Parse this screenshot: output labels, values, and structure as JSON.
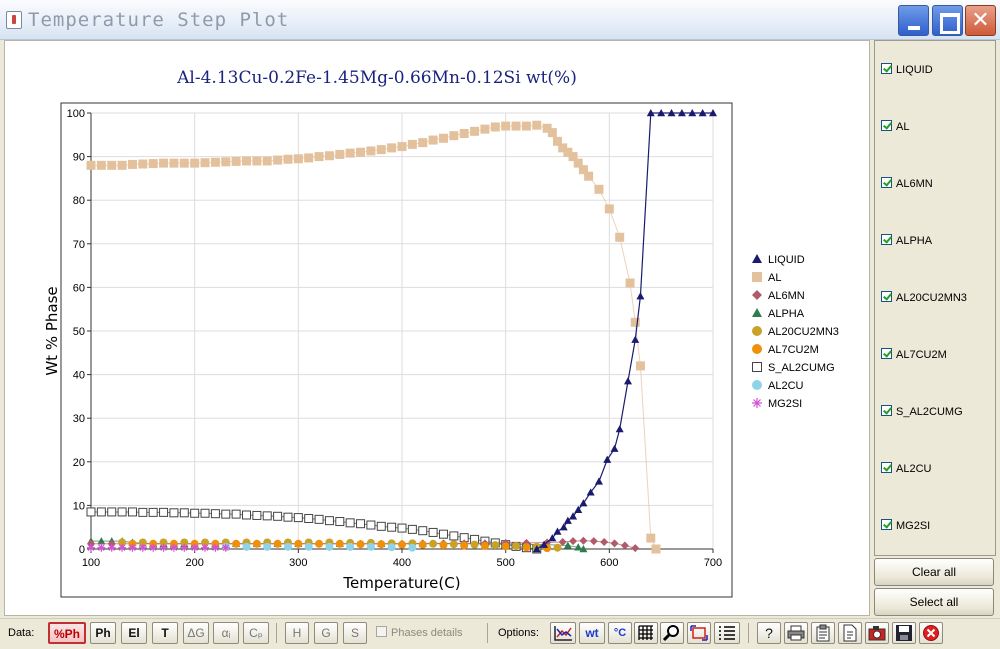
{
  "window": {
    "title": "Temperature Step Plot"
  },
  "chart_data": {
    "type": "scatter",
    "title": "Al-4.13Cu-0.2Fe-1.45Mg-0.66Mn-0.12Si wt(%)",
    "xlabel": "Temperature(C)",
    "ylabel": "Wt % Phase",
    "xlim": [
      100,
      700
    ],
    "ylim": [
      0,
      100
    ],
    "xticks": [
      "100",
      "200",
      "300",
      "400",
      "500",
      "600",
      "700"
    ],
    "yticks": [
      "0",
      "10",
      "20",
      "30",
      "40",
      "50",
      "60",
      "70",
      "80",
      "90",
      "100"
    ],
    "grid": true,
    "legend_position": "right",
    "series": [
      {
        "name": "LIQUID",
        "color": "#1a1a6e",
        "marker": "triangle",
        "line": true,
        "x": [
          530,
          537,
          545,
          550,
          556,
          560,
          565,
          570,
          575,
          582,
          590,
          598,
          605,
          610,
          618,
          625,
          630,
          640,
          650,
          660,
          670,
          680,
          690,
          700
        ],
        "y": [
          0,
          1,
          2.5,
          4,
          5,
          6.5,
          7.5,
          9,
          10.5,
          13,
          15.5,
          20.5,
          23,
          27.5,
          38.5,
          48,
          58,
          100,
          100,
          100,
          100,
          100,
          100,
          100
        ]
      },
      {
        "name": "AL",
        "color": "#e3c19c",
        "marker": "square",
        "line": true,
        "x": [
          100,
          110,
          120,
          130,
          140,
          150,
          160,
          170,
          180,
          190,
          200,
          210,
          220,
          230,
          240,
          250,
          260,
          270,
          280,
          290,
          300,
          310,
          320,
          330,
          340,
          350,
          360,
          370,
          380,
          390,
          400,
          410,
          420,
          430,
          440,
          450,
          460,
          470,
          480,
          490,
          500,
          510,
          520,
          530,
          540,
          545,
          550,
          555,
          560,
          565,
          570,
          575,
          580,
          590,
          600,
          610,
          620,
          625,
          630,
          640,
          645
        ],
        "y": [
          88,
          88,
          88,
          88,
          88.2,
          88.3,
          88.4,
          88.5,
          88.5,
          88.5,
          88.5,
          88.6,
          88.7,
          88.8,
          88.9,
          89,
          89,
          89,
          89.2,
          89.4,
          89.5,
          89.7,
          90,
          90.2,
          90.5,
          90.8,
          91,
          91.3,
          91.6,
          92,
          92.3,
          92.8,
          93.2,
          93.8,
          94.2,
          94.8,
          95.3,
          95.8,
          96.3,
          96.8,
          97,
          97,
          97,
          97.2,
          96.5,
          95.5,
          93.5,
          92,
          91,
          90,
          88.5,
          87,
          85.5,
          82.5,
          78,
          71.5,
          61,
          52,
          42,
          2.5,
          0
        ]
      },
      {
        "name": "AL6MN",
        "color": "#b05a6a",
        "marker": "diamond",
        "line": true,
        "x": [
          100,
          120,
          140,
          160,
          180,
          200,
          220,
          240,
          260,
          280,
          300,
          320,
          340,
          360,
          380,
          400,
          420,
          440,
          460,
          480,
          500,
          520,
          540,
          555,
          565,
          575,
          585,
          595,
          605,
          615,
          625
        ],
        "y": [
          1.2,
          1.2,
          1.2,
          1.2,
          1.2,
          1.2,
          1.2,
          1.2,
          1.2,
          1.2,
          1.2,
          1.2,
          1.2,
          1.2,
          1.2,
          1.2,
          1.3,
          1.3,
          1.3,
          1.3,
          1.4,
          1.4,
          1.5,
          1.6,
          1.8,
          1.9,
          1.8,
          1.6,
          1.3,
          0.8,
          0.2
        ]
      },
      {
        "name": "ALPHA",
        "color": "#2e7d4f",
        "marker": "triangle",
        "line": true,
        "x": [
          100,
          110,
          120,
          130,
          140,
          150,
          160,
          170,
          180,
          190,
          200,
          220,
          240,
          260,
          280,
          300,
          340,
          380,
          420,
          460,
          500,
          540,
          560,
          570,
          575
        ],
        "y": [
          1.8,
          1.8,
          1.8,
          1.8,
          1.5,
          1.3,
          1.2,
          1.2,
          1.2,
          1.2,
          1.2,
          1.2,
          1.2,
          1.2,
          1.2,
          1.2,
          1.2,
          1.2,
          1.2,
          1.2,
          1.1,
          1,
          0.8,
          0.4,
          0
        ]
      },
      {
        "name": "AL20CU2MN3",
        "color": "#c9a227",
        "marker": "circle",
        "line": false,
        "x": [
          130,
          150,
          170,
          190,
          210,
          230,
          250,
          270,
          290,
          310,
          330,
          350,
          370,
          390,
          410,
          430,
          450,
          470,
          490,
          510,
          530,
          550
        ],
        "y": [
          1.5,
          1.5,
          1.5,
          1.5,
          1.5,
          1.5,
          1.5,
          1.5,
          1.5,
          1.5,
          1.5,
          1.4,
          1.4,
          1.3,
          1.3,
          1.2,
          1.1,
          1,
          0.9,
          0.7,
          0.5,
          0.3
        ]
      },
      {
        "name": "AL7CU2M",
        "color": "#f0900a",
        "marker": "circle",
        "line": false,
        "x": [
          140,
          160,
          180,
          200,
          220,
          240,
          260,
          280,
          300,
          320,
          340,
          360,
          380,
          400,
          420,
          440,
          460,
          480,
          500,
          520,
          540
        ],
        "y": [
          1.2,
          1.2,
          1.2,
          1.2,
          1.2,
          1.2,
          1.2,
          1.2,
          1.2,
          1.2,
          1.2,
          1.1,
          1.1,
          1,
          1,
          0.9,
          0.8,
          0.7,
          0.6,
          0.4,
          0.2
        ]
      },
      {
        "name": "S_AL2CUMG",
        "color": "#444444",
        "marker": "square-open",
        "line": true,
        "x": [
          100,
          110,
          120,
          130,
          140,
          150,
          160,
          170,
          180,
          190,
          200,
          210,
          220,
          230,
          240,
          250,
          260,
          270,
          280,
          290,
          300,
          310,
          320,
          330,
          340,
          350,
          360,
          370,
          380,
          390,
          400,
          410,
          420,
          430,
          440,
          450,
          460,
          470,
          480,
          490,
          500,
          510,
          520,
          530
        ],
        "y": [
          8.5,
          8.5,
          8.5,
          8.5,
          8.5,
          8.4,
          8.4,
          8.4,
          8.3,
          8.3,
          8.2,
          8.2,
          8.1,
          8,
          8,
          7.8,
          7.7,
          7.6,
          7.5,
          7.3,
          7.2,
          7,
          6.8,
          6.5,
          6.3,
          6,
          5.8,
          5.5,
          5.2,
          5,
          4.8,
          4.5,
          4.2,
          3.8,
          3.4,
          3,
          2.6,
          2.2,
          1.8,
          1.4,
          1,
          0.6,
          0.3,
          0
        ]
      },
      {
        "name": "AL2CU",
        "color": "#8fd3e8",
        "marker": "circle",
        "line": false,
        "x": [
          230,
          250,
          270,
          290,
          310,
          330,
          350,
          370,
          390,
          410
        ],
        "y": [
          0.5,
          0.5,
          0.5,
          0.5,
          0.5,
          0.5,
          0.5,
          0.5,
          0.4,
          0.3
        ]
      },
      {
        "name": "MG2SI",
        "color": "#d64fd6",
        "marker": "asterisk",
        "line": false,
        "x": [
          100,
          110,
          120,
          130,
          140,
          150,
          160,
          170,
          180,
          190,
          200,
          210,
          220,
          230
        ],
        "y": [
          0.3,
          0.3,
          0.3,
          0.3,
          0.3,
          0.3,
          0.3,
          0.3,
          0.3,
          0.3,
          0.3,
          0.3,
          0.3,
          0.3
        ]
      }
    ]
  },
  "side_panel": {
    "items": [
      {
        "label": "LIQUID",
        "checked": true
      },
      {
        "label": "AL",
        "checked": true
      },
      {
        "label": "AL6MN",
        "checked": true
      },
      {
        "label": "ALPHA",
        "checked": true
      },
      {
        "label": "AL20CU2MN3",
        "checked": true
      },
      {
        "label": "AL7CU2M",
        "checked": true
      },
      {
        "label": "S_AL2CUMG",
        "checked": true
      },
      {
        "label": "AL2CU",
        "checked": true
      },
      {
        "label": "MG2SI",
        "checked": true
      }
    ],
    "clear_all_label": "Clear all",
    "select_all_label": "Select all"
  },
  "toolbar": {
    "data_label": "Data:",
    "data_buttons": [
      "%Ph",
      "Ph",
      "El",
      "T",
      "ΔG",
      "αᵢ",
      "Cₚ"
    ],
    "active_data_button": "%Ph",
    "type_buttons": [
      "H",
      "G",
      "S"
    ],
    "phases_details_label": "Phases details",
    "options_label": "Options:",
    "wt_label": "wt",
    "celsius_label": "°C",
    "icons": [
      "axis-icon",
      "wt-icon",
      "celsius-icon",
      "grid-icon",
      "zoom-icon",
      "crop-icon",
      "list-icon",
      "help-icon",
      "print-icon",
      "clipboard-icon",
      "document-icon",
      "camera-icon",
      "save-icon",
      "close-icon"
    ]
  }
}
